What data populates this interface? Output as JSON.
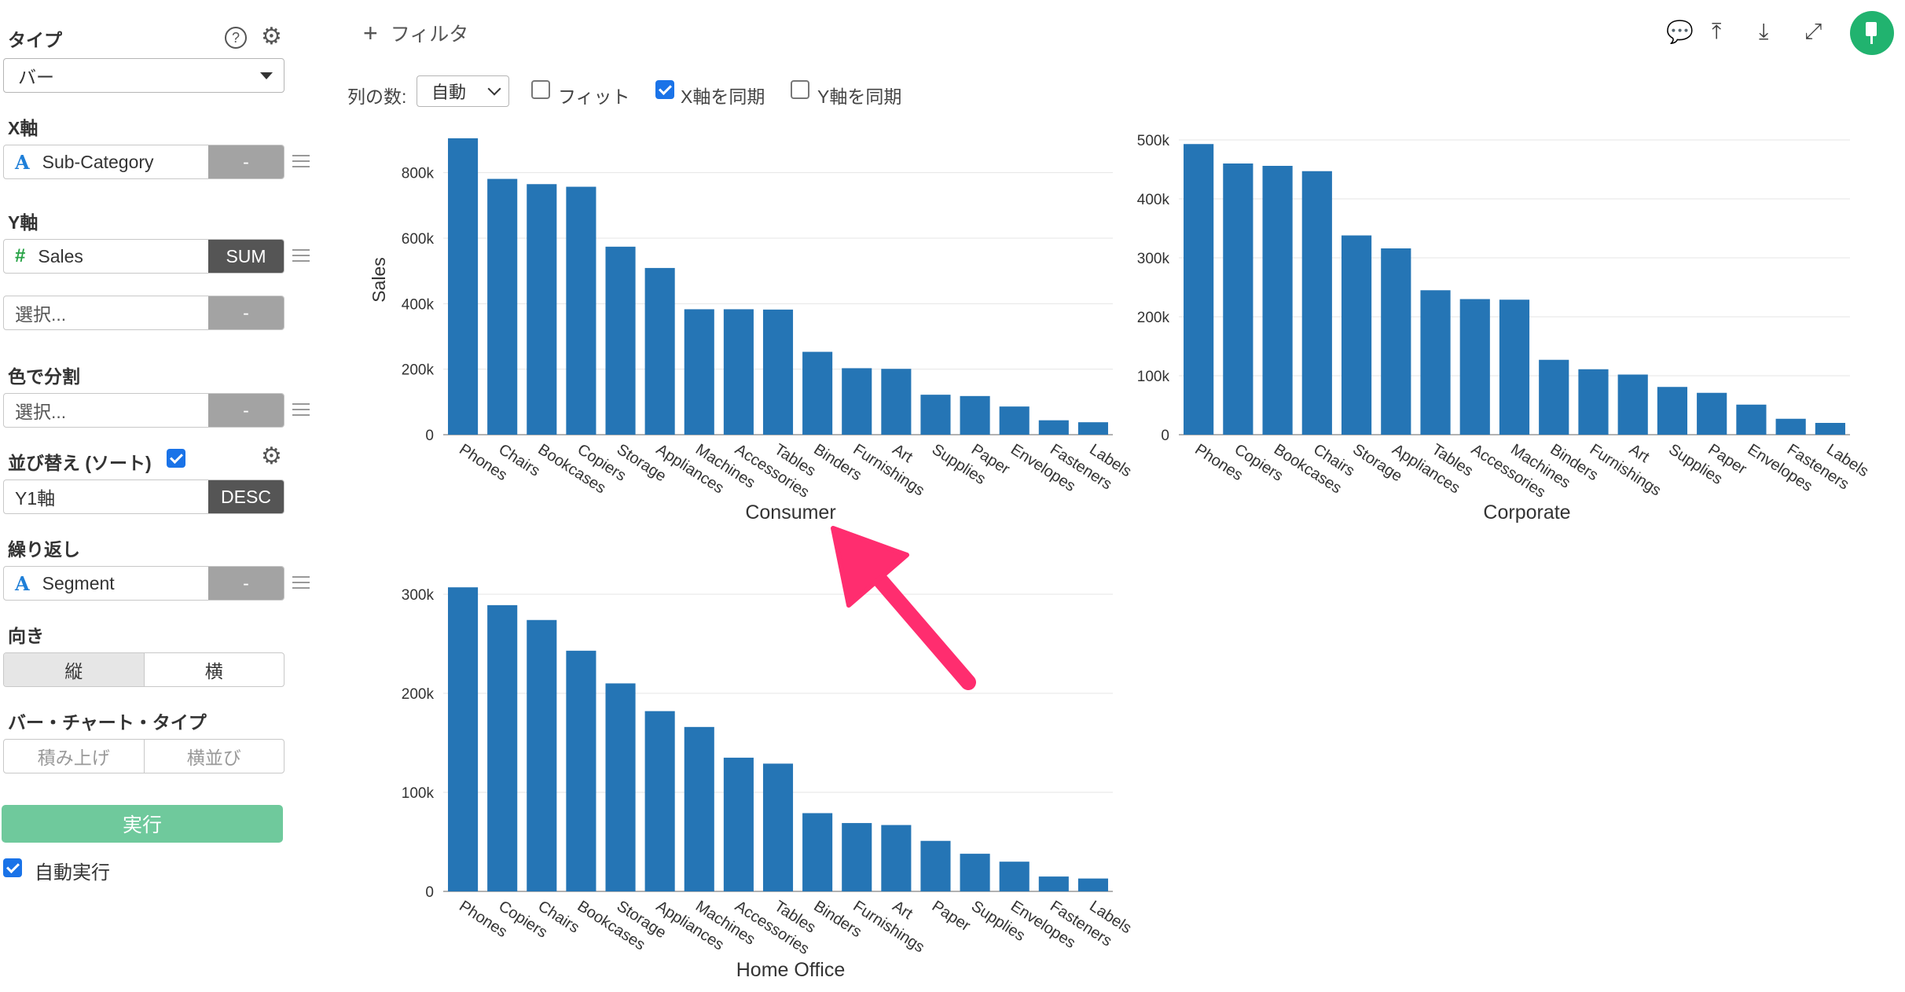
{
  "sidebar": {
    "type_label": "タイプ",
    "type_value": "バー",
    "xaxis_label": "X軸",
    "xaxis_field": "Sub-Category",
    "xaxis_agg": "-",
    "yaxis_label": "Y軸",
    "yaxis_field": "Sales",
    "yaxis_agg": "SUM",
    "yaxis2_placeholder": "選択...",
    "yaxis2_agg": "-",
    "color_label": "色で分割",
    "color_placeholder": "選択...",
    "color_agg": "-",
    "sort_label": "並び替え (ソート)",
    "sort_field": "Y1軸",
    "sort_order": "DESC",
    "repeat_label": "繰り返し",
    "repeat_field": "Segment",
    "repeat_agg": "-",
    "orientation_label": "向き",
    "orientation_vertical": "縦",
    "orientation_horizontal": "横",
    "bar_type_label": "バー・チャート・タイプ",
    "bar_type_stacked": "積み上げ",
    "bar_type_side": "横並び",
    "run_label": "実行",
    "auto_run_label": "自動実行"
  },
  "toolbar": {
    "filter_label": "フィルタ",
    "columns_label": "列の数:",
    "columns_value": "自動",
    "fit_label": "フィット",
    "sync_x_label": "X軸を同期",
    "sync_y_label": "Y軸を同期"
  },
  "colors": {
    "bar": "#2575b5",
    "annotation_arrow": "#ff2d6f",
    "accent_green": "#21b36f"
  },
  "chart_data": [
    {
      "type": "bar",
      "title": "Consumer",
      "ylabel": "Sales",
      "ylim": [
        0,
        900000
      ],
      "yticks": [
        0,
        200000,
        400000,
        600000,
        800000
      ],
      "ytick_labels": [
        "0",
        "200k",
        "400k",
        "600k",
        "800k"
      ],
      "categories": [
        "Phones",
        "Chairs",
        "Bookcases",
        "Copiers",
        "Storage",
        "Appliances",
        "Machines",
        "Accessories",
        "Tables",
        "Binders",
        "Furnishings",
        "Art",
        "Supplies",
        "Paper",
        "Envelopes",
        "Fasteners",
        "Labels"
      ],
      "values": [
        905000,
        781000,
        765000,
        757000,
        574000,
        509000,
        383000,
        383000,
        382000,
        253000,
        203000,
        201000,
        122000,
        118000,
        86000,
        44000,
        38000
      ]
    },
    {
      "type": "bar",
      "title": "Corporate",
      "ylim": [
        0,
        500000
      ],
      "yticks": [
        0,
        100000,
        200000,
        300000,
        400000,
        500000
      ],
      "ytick_labels": [
        "0",
        "100k",
        "200k",
        "300k",
        "400k",
        "500k"
      ],
      "categories": [
        "Phones",
        "Copiers",
        "Bookcases",
        "Chairs",
        "Storage",
        "Appliances",
        "Tables",
        "Accessories",
        "Machines",
        "Binders",
        "Furnishings",
        "Art",
        "Supplies",
        "Paper",
        "Envelopes",
        "Fasteners",
        "Labels"
      ],
      "values": [
        493000,
        460000,
        456000,
        447000,
        338000,
        316000,
        245000,
        230000,
        229000,
        127000,
        111000,
        102000,
        81000,
        71000,
        51000,
        27000,
        20000
      ]
    },
    {
      "type": "bar",
      "title": "Home Office",
      "ylim": [
        0,
        300000
      ],
      "yticks": [
        0,
        100000,
        200000,
        300000
      ],
      "ytick_labels": [
        "0",
        "100k",
        "200k",
        "300k"
      ],
      "categories": [
        "Phones",
        "Copiers",
        "Chairs",
        "Bookcases",
        "Storage",
        "Appliances",
        "Machines",
        "Accessories",
        "Tables",
        "Binders",
        "Furnishings",
        "Art",
        "Paper",
        "Supplies",
        "Envelopes",
        "Fasteners",
        "Labels"
      ],
      "values": [
        307000,
        289000,
        274000,
        243000,
        210000,
        182000,
        166000,
        135000,
        129000,
        79000,
        69000,
        67000,
        51000,
        38000,
        30000,
        15000,
        13000
      ]
    }
  ]
}
